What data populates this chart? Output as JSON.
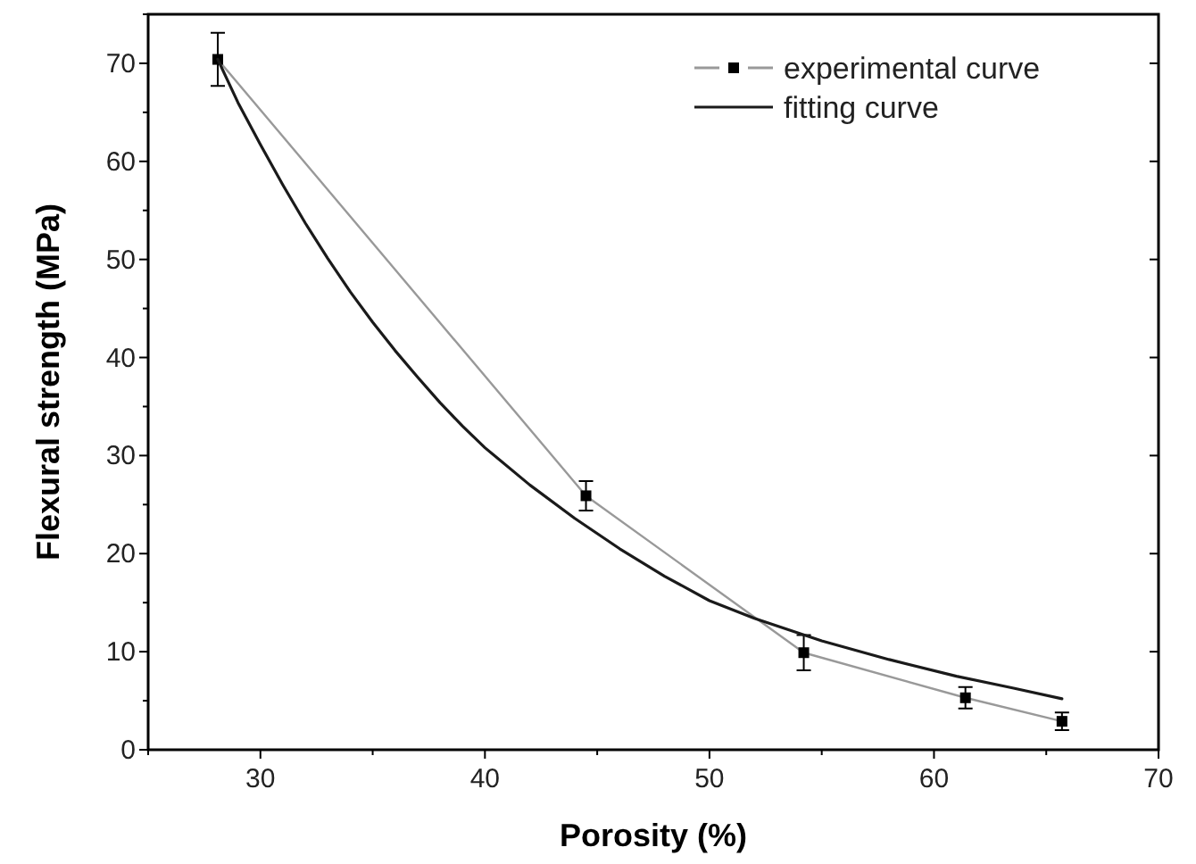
{
  "chart_data": {
    "type": "line",
    "xlabel": "Porosity (%)",
    "ylabel": "Flexural strength (MPa)",
    "xlim": [
      25,
      70
    ],
    "xticks": [
      30,
      40,
      50,
      60,
      70
    ],
    "ylim": [
      0,
      75
    ],
    "yticks": [
      0,
      10,
      20,
      30,
      40,
      50,
      60,
      70
    ],
    "legend": "top right",
    "grid": false,
    "series": [
      {
        "name": "experimental curve",
        "color": "#999999",
        "marker": "square",
        "x": [
          28.1,
          44.5,
          54.2,
          61.4,
          65.7
        ],
        "values": [
          70.4,
          25.9,
          9.9,
          5.3,
          2.9
        ],
        "errors": [
          2.7,
          1.5,
          1.8,
          1.1,
          0.9
        ]
      },
      {
        "name": "fitting curve",
        "color": "#1a1a1a",
        "marker": "none",
        "x": [
          28.1,
          29,
          30,
          31,
          32,
          33,
          34,
          35,
          36,
          37,
          38,
          39,
          40,
          42,
          44,
          46,
          48,
          50,
          52,
          55,
          58,
          61,
          63.5,
          65.7
        ],
        "values": [
          70.4,
          66,
          61.7,
          57.6,
          53.7,
          50.1,
          46.7,
          43.6,
          40.7,
          38,
          35.4,
          33,
          30.8,
          27,
          23.6,
          20.5,
          17.7,
          15.2,
          13.4,
          11.1,
          9.2,
          7.5,
          6.3,
          5.2
        ]
      }
    ]
  }
}
